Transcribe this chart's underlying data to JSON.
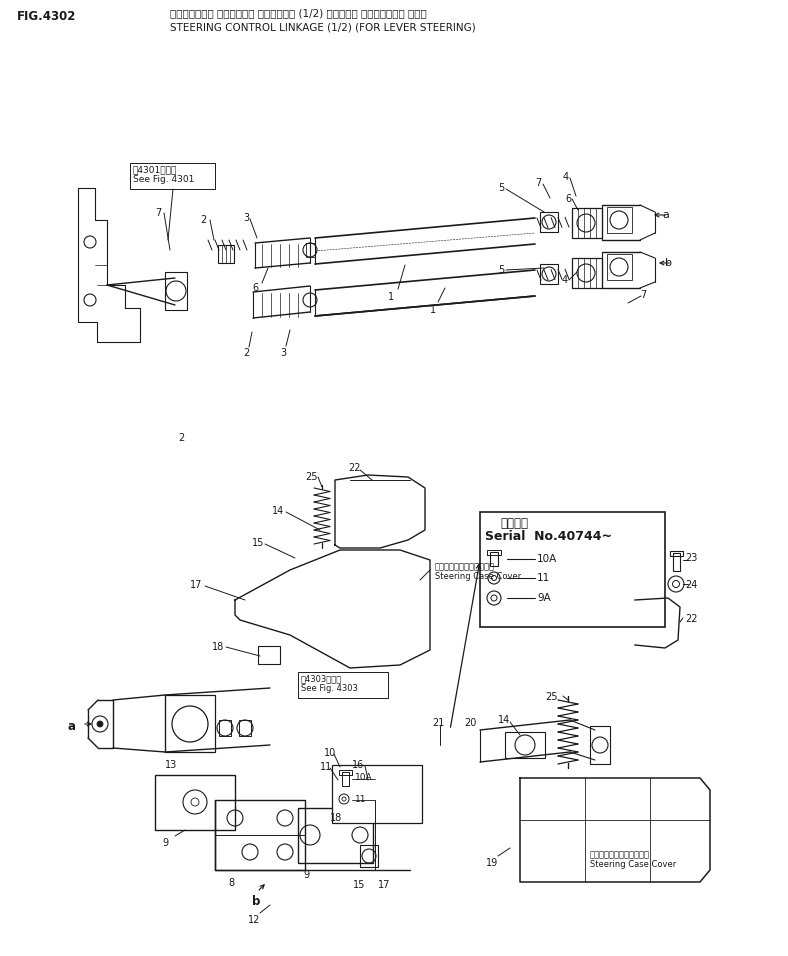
{
  "title_jp": "ステアリング゚ コントロール リンケーシ゚ (1/2) （レパー ステアリング゚ より）",
  "title_en": "STEERING CONTROL LINKAGE (1/2) (FOR LEVER STEERING)",
  "fig_label": "FIG.4302",
  "bg_color": "#ffffff",
  "line_color": "#1a1a1a",
  "serial_text_jp": "適用号機",
  "serial_text_en": "Serial  No.40744~",
  "see_fig_4301_jp": "第4301図参照",
  "see_fig_4301_en": "See Fig. 4301",
  "see_fig_4303_jp": "第4303図参照",
  "see_fig_4303_en": "See Fig. 4303",
  "steering_case_jp": "ステアリングケースカバー",
  "steering_case_en": "Steering Case Cover"
}
